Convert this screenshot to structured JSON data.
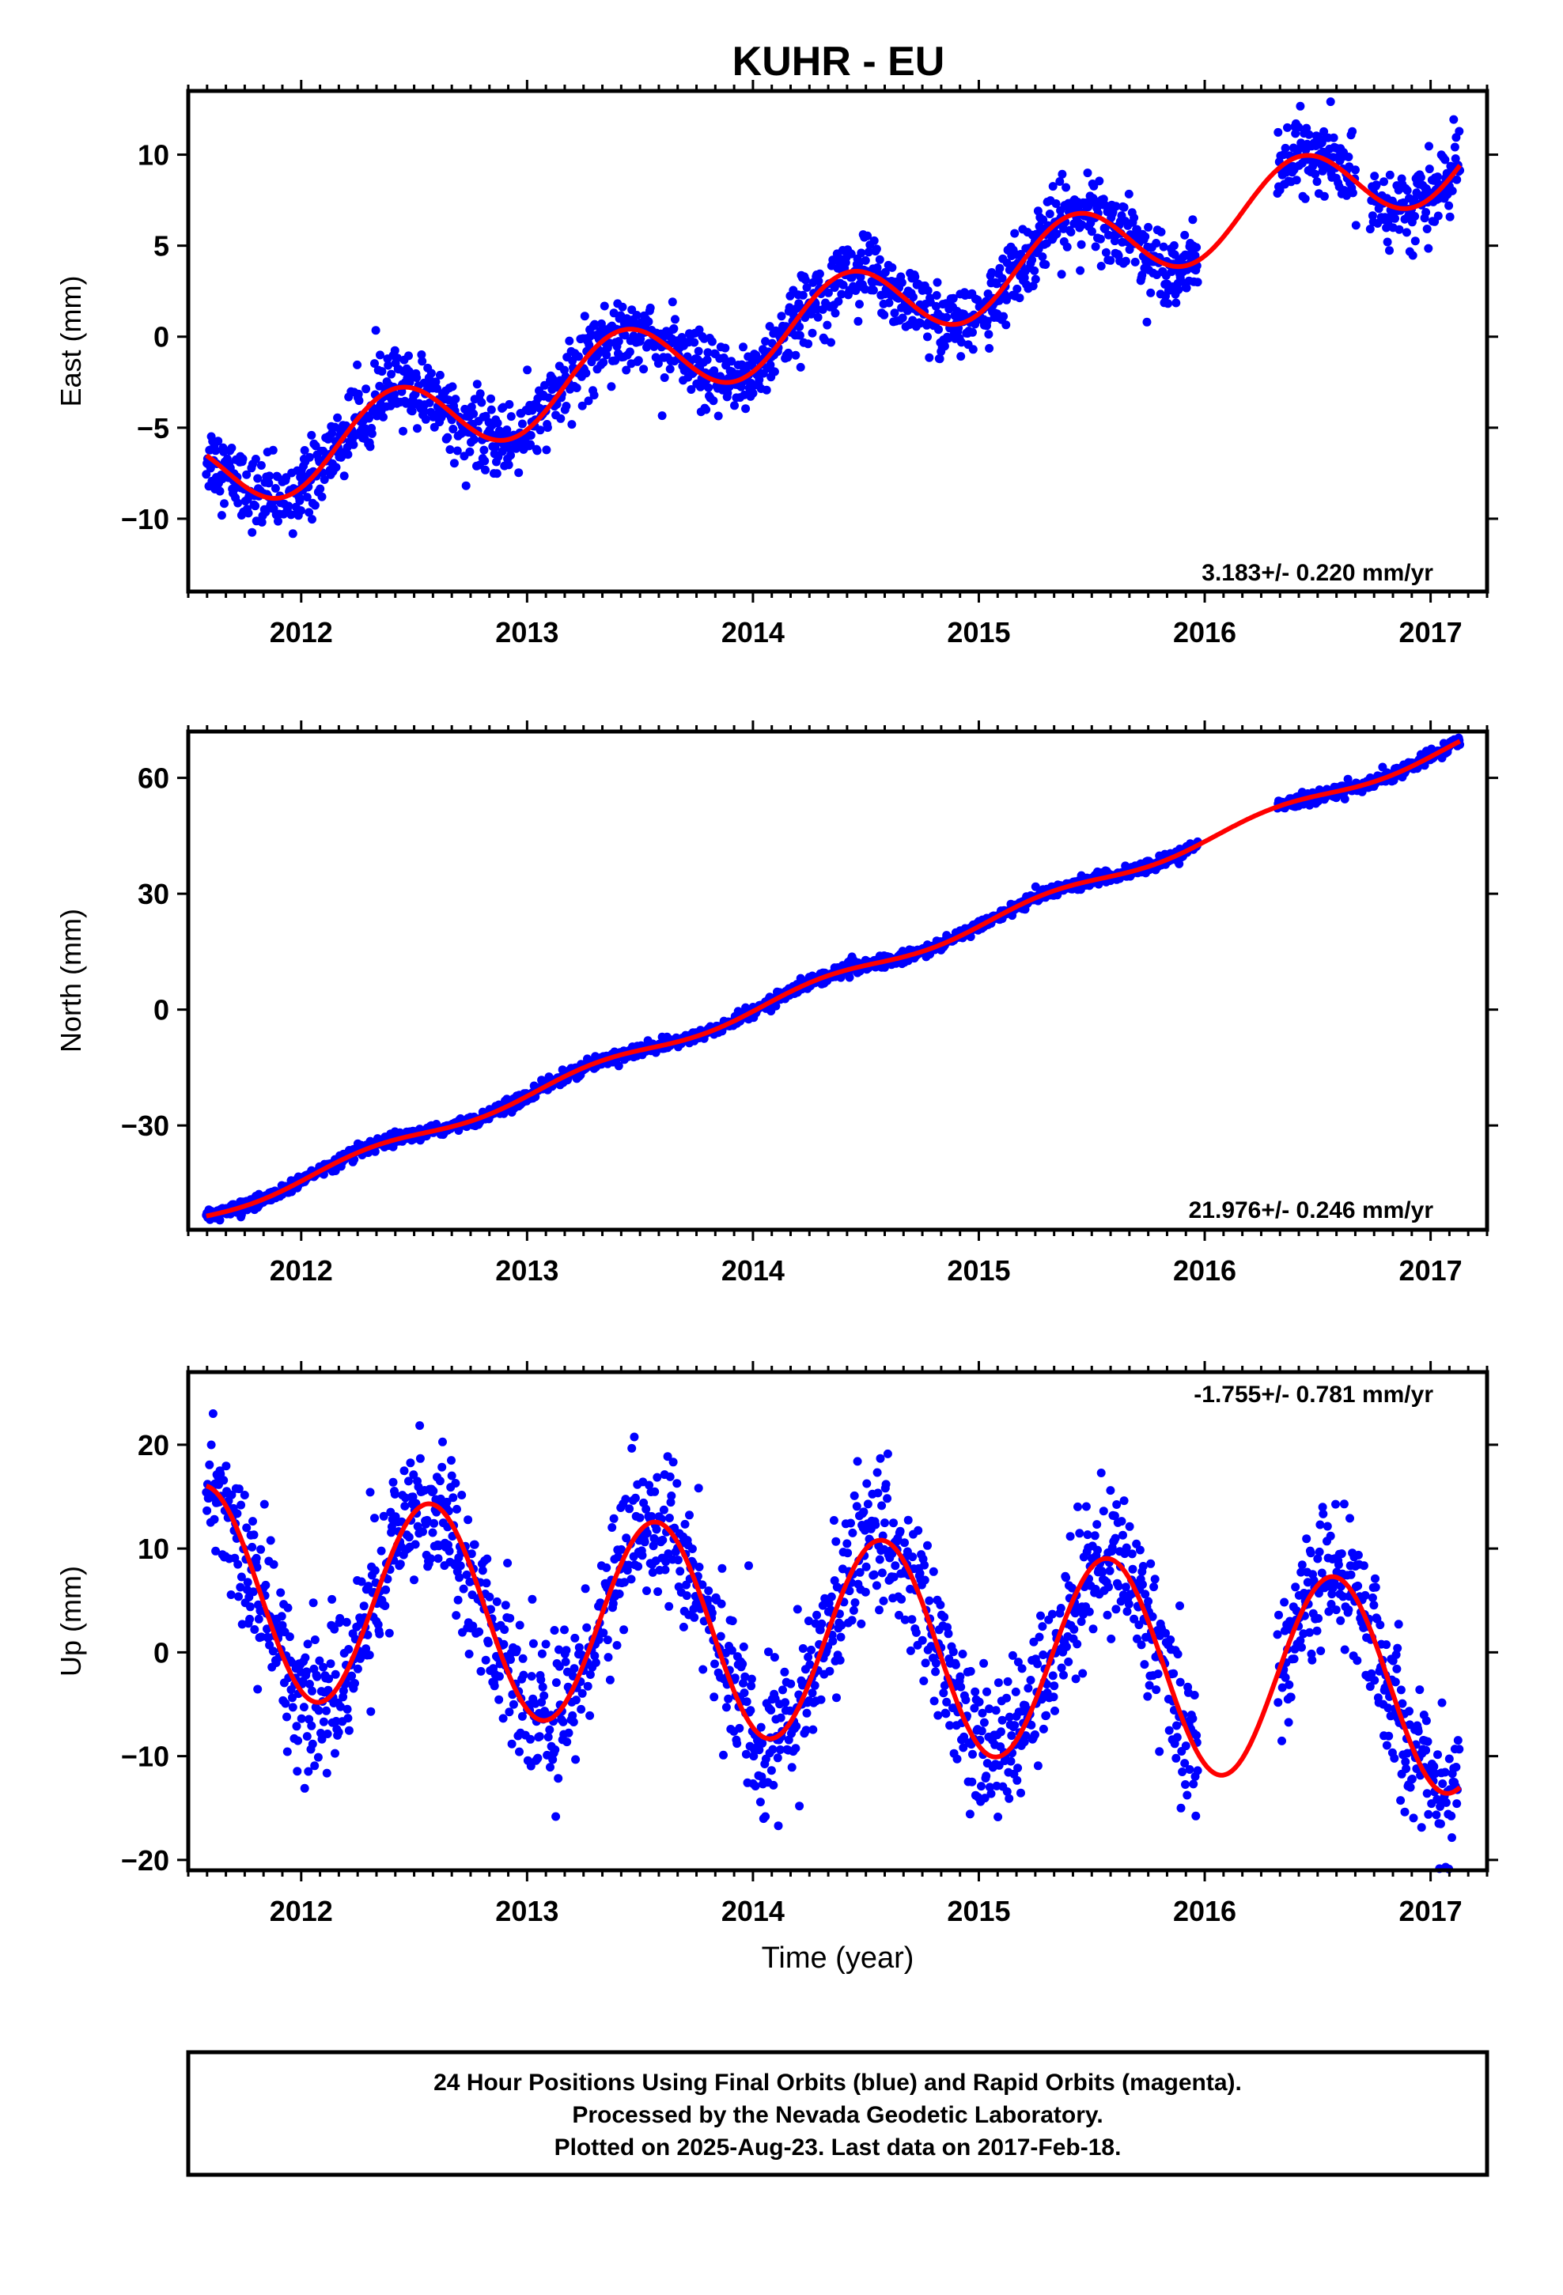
{
  "title": "KUHR - EU",
  "colors": {
    "points": "#0000ff",
    "fit": "#ff0000",
    "frame": "#000000"
  },
  "footer": {
    "lines": [
      "24 Hour Positions Using Final Orbits (blue) and Rapid Orbits (magenta).",
      "Processed by the Nevada Geodetic Laboratory.",
      "Plotted on 2025-Aug-23. Last data on 2017-Feb-18."
    ]
  },
  "chart_data": [
    {
      "type": "scatter",
      "ylabel": "East (mm)",
      "xlabel": "",
      "xlim": [
        2011.5,
        2017.25
      ],
      "ylim": [
        -14,
        13.5
      ],
      "xticks": [
        2012,
        2013,
        2014,
        2015,
        2016,
        2017
      ],
      "yticks": [
        10,
        5,
        0,
        -5,
        -10
      ],
      "ytick_labels": [
        "10",
        "5",
        "0",
        "−5",
        "−10"
      ],
      "rate_label": "3.183+/- 0.220 mm/yr",
      "rate_position": "bottom-right",
      "trend": {
        "t0": 2014.0,
        "intercept": 0.0,
        "slope": 3.183,
        "annual_amp": 2.2,
        "annual_phase_peak": 0.42
      },
      "scatter": 1.0,
      "gaps": [
        [
          2015.97,
          2016.32
        ],
        [
          2016.67,
          2016.73
        ]
      ],
      "series": [
        {
          "name": "24 Hour Positions",
          "x_start": 2011.58,
          "x_end": 2017.13
        }
      ]
    },
    {
      "type": "scatter",
      "ylabel": "North (mm)",
      "xlabel": "",
      "xlim": [
        2011.5,
        2017.25
      ],
      "ylim": [
        -57,
        72
      ],
      "xticks": [
        2012,
        2013,
        2014,
        2015,
        2016,
        2017
      ],
      "yticks": [
        60,
        30,
        0,
        -30
      ],
      "ytick_labels": [
        "60",
        "30",
        "0",
        "−30"
      ],
      "rate_label": "21.976+/- 0.246 mm/yr",
      "rate_position": "bottom-right",
      "trend": {
        "t0": 2014.0,
        "intercept": 0.0,
        "slope": 21.976,
        "annual_amp": 1.5,
        "annual_phase_peak": 0.3
      },
      "scatter": 0.8,
      "gaps": [
        [
          2015.97,
          2016.32
        ]
      ],
      "series": [
        {
          "name": "24 Hour Positions",
          "x_start": 2011.58,
          "x_end": 2017.13
        }
      ]
    },
    {
      "type": "scatter",
      "ylabel": "Up (mm)",
      "xlabel": "Time (year)",
      "xlim": [
        2011.5,
        2017.25
      ],
      "ylim": [
        -21,
        27
      ],
      "xticks": [
        2012,
        2013,
        2014,
        2015,
        2016,
        2017
      ],
      "yticks": [
        20,
        10,
        0,
        -10,
        -20
      ],
      "ytick_labels": [
        "20",
        "10",
        "0",
        "−10",
        "−20"
      ],
      "rate_label": "-1.755+/- 0.781 mm/yr",
      "rate_position": "top-right",
      "trend": {
        "t0": 2014.0,
        "intercept": 1.8,
        "slope": -1.755,
        "annual_amp": 10.0,
        "annual_phase_peak": 0.57
      },
      "scatter": 3.5,
      "gaps": [
        [
          2015.97,
          2016.32
        ]
      ],
      "series": [
        {
          "name": "24 Hour Positions",
          "x_start": 2011.58,
          "x_end": 2017.13
        }
      ]
    }
  ]
}
